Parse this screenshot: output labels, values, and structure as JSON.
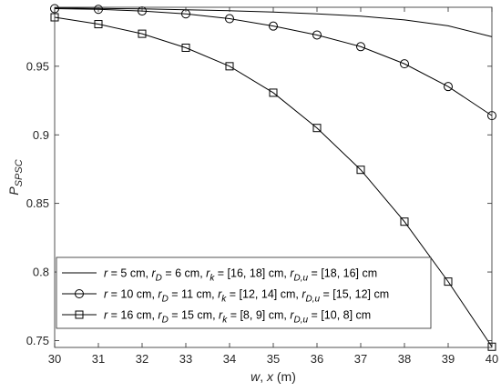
{
  "chart_data": {
    "type": "line",
    "xlabel": "w, x (m)",
    "ylabel_main": "P",
    "ylabel_sub": "SPSC",
    "xlim": [
      30,
      40
    ],
    "ylim": [
      0.745,
      0.993
    ],
    "xticks": [
      30,
      31,
      32,
      33,
      34,
      35,
      36,
      37,
      38,
      39,
      40
    ],
    "yticks": [
      0.75,
      0.8,
      0.85,
      0.9,
      0.95
    ],
    "ytick_labels": [
      "0.75",
      "0.8",
      "0.85",
      "0.9",
      "0.95"
    ],
    "grid": false,
    "legend_position": "bottom-left",
    "x": [
      30,
      31,
      32,
      33,
      34,
      35,
      36,
      37,
      38,
      39,
      40
    ],
    "series": [
      {
        "marker": "none",
        "legend_parts": [
          {
            "t": "r",
            "i": true
          },
          {
            "t": " = 5 cm, "
          },
          {
            "t": "r",
            "i": true
          },
          {
            "t": "D",
            "i": true,
            "sub": true
          },
          {
            "t": " = 6 cm, "
          },
          {
            "t": "r",
            "i": true
          },
          {
            "t": "k",
            "i": true,
            "sub": true
          },
          {
            "t": " = [16, 18] cm, "
          },
          {
            "t": "r",
            "i": true
          },
          {
            "t": "D,u",
            "i": true,
            "sub": true
          },
          {
            "t": " = [18, 16] cm"
          }
        ],
        "values": [
          0.9925,
          0.9922,
          0.9918,
          0.9912,
          0.9905,
          0.9895,
          0.9882,
          0.9865,
          0.9838,
          0.9795,
          0.9715
        ]
      },
      {
        "marker": "circle",
        "legend_parts": [
          {
            "t": "r",
            "i": true
          },
          {
            "t": " = 10 cm, "
          },
          {
            "t": "r",
            "i": true
          },
          {
            "t": "D",
            "i": true,
            "sub": true
          },
          {
            "t": " = 11 cm, "
          },
          {
            "t": "r",
            "i": true
          },
          {
            "t": "k",
            "i": true,
            "sub": true
          },
          {
            "t": " = [12, 14] cm, "
          },
          {
            "t": "r",
            "i": true
          },
          {
            "t": "D,u",
            "i": true,
            "sub": true
          },
          {
            "t": " = [15, 12] cm"
          }
        ],
        "values": [
          0.992,
          0.9915,
          0.9903,
          0.9882,
          0.9847,
          0.9793,
          0.9728,
          0.9643,
          0.9518,
          0.9352,
          0.914
        ]
      },
      {
        "marker": "square",
        "legend_parts": [
          {
            "t": "r",
            "i": true
          },
          {
            "t": " = 16 cm, "
          },
          {
            "t": "r",
            "i": true
          },
          {
            "t": "D",
            "i": true,
            "sub": true
          },
          {
            "t": " = 15 cm, "
          },
          {
            "t": "r",
            "i": true
          },
          {
            "t": "k",
            "i": true,
            "sub": true
          },
          {
            "t": " = [8, 9] cm, "
          },
          {
            "t": "r",
            "i": true
          },
          {
            "t": "D,u",
            "i": true,
            "sub": true
          },
          {
            "t": " = [10, 8] cm"
          }
        ],
        "values": [
          0.9857,
          0.9807,
          0.9737,
          0.9635,
          0.95,
          0.9307,
          0.905,
          0.8745,
          0.8367,
          0.793,
          0.7455
        ]
      }
    ]
  }
}
